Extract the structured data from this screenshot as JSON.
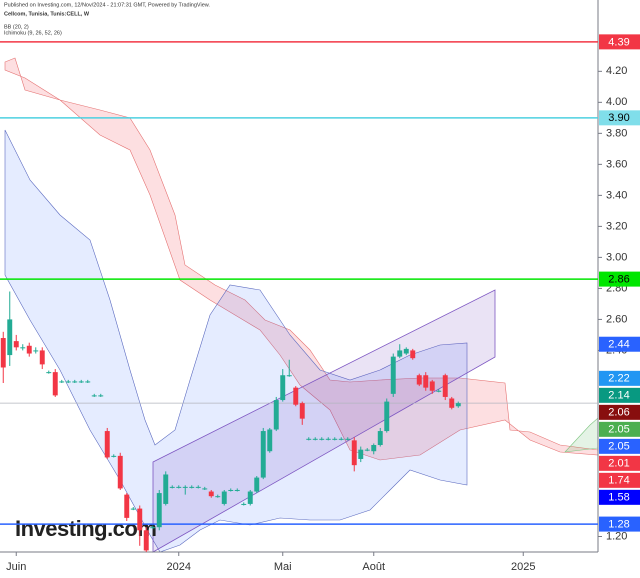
{
  "header": {
    "published": "Published on Investing.com, 12/Nov/2024 - 21:07:31 GMT, Powered by TradingView.",
    "symbol": "Cellcom, Tunisia, Tunis:CELL, W"
  },
  "chart_data": {
    "type": "candlestick",
    "indicators": [
      "BB (20, 2)",
      "Ichimoku (9, 26, 52, 26)"
    ],
    "logo": "Investing.com",
    "up_color": "#22ab94",
    "down_color": "#f23645",
    "categories": [
      null,
      null,
      "Juin",
      null,
      null,
      null,
      null,
      null,
      null,
      null,
      null,
      null,
      null,
      null,
      null,
      null,
      null,
      null,
      null,
      null,
      null,
      null,
      null,
      null,
      null,
      null,
      null,
      "2024",
      null,
      null,
      null,
      null,
      null,
      null,
      null,
      null,
      null,
      null,
      null,
      null,
      null,
      null,
      null,
      "Mai",
      null,
      null,
      null,
      null,
      null,
      null,
      null,
      null,
      null,
      null,
      null,
      null,
      null,
      "Août",
      null,
      null,
      null,
      null,
      null,
      null,
      null,
      null,
      null,
      null,
      null,
      null,
      null,
      null,
      null,
      null,
      null,
      null,
      null,
      null,
      null,
      null,
      "2025",
      null,
      null,
      null,
      null,
      null,
      null,
      null,
      null,
      null,
      null,
      null
    ],
    "open": [
      2.48,
      2.37,
      2.46,
      2.42,
      2.43,
      2.4,
      2.4,
      2.26,
      2.26,
      2.2,
      2.2,
      2.2,
      2.2,
      2.2,
      2.11,
      2.11,
      1.88,
      1.72,
      1.72,
      1.47,
      1.38,
      1.38,
      1.24,
      1.26,
      1.26,
      1.41,
      1.52,
      1.52,
      1.52,
      1.52,
      1.52,
      1.51,
      1.49,
      1.46,
      1.41,
      1.5,
      1.5,
      1.41,
      1.41,
      1.49,
      1.58,
      1.75,
      1.89,
      2.08,
      2.24,
      2.16,
      2.06,
      1.83,
      1.83,
      1.83,
      1.83,
      1.83,
      1.83,
      1.83,
      1.82,
      1.7,
      1.76,
      1.75,
      1.79,
      1.88,
      2.12,
      2.36,
      2.38,
      2.4,
      2.24,
      2.24,
      2.2,
      2.14,
      2.24,
      2.09,
      2.04,
      null,
      null,
      null,
      null,
      null,
      null,
      null,
      null,
      null,
      null,
      null,
      null,
      null,
      null,
      null,
      null,
      null,
      null,
      null,
      null,
      null
    ],
    "high": [
      2.52,
      2.78,
      2.5,
      2.44,
      2.45,
      2.42,
      2.42,
      2.27,
      2.28,
      2.21,
      2.21,
      2.21,
      2.21,
      2.21,
      2.12,
      2.12,
      1.9,
      1.73,
      1.74,
      1.48,
      1.39,
      1.4,
      1.26,
      1.27,
      1.5,
      1.62,
      1.53,
      1.53,
      1.53,
      1.53,
      1.53,
      1.52,
      1.5,
      1.47,
      1.5,
      1.51,
      1.51,
      1.42,
      1.5,
      1.59,
      1.9,
      1.9,
      2.1,
      2.28,
      2.34,
      2.17,
      2.07,
      1.84,
      1.84,
      1.84,
      1.84,
      1.84,
      1.84,
      1.84,
      1.84,
      1.78,
      1.77,
      1.8,
      1.9,
      2.09,
      2.38,
      2.44,
      2.42,
      2.41,
      2.25,
      2.26,
      2.21,
      2.15,
      2.25,
      2.1,
      2.07,
      null,
      null,
      null,
      null,
      null,
      null,
      null,
      null,
      null,
      null,
      null,
      null,
      null,
      null,
      null,
      null,
      null,
      null,
      null,
      null,
      null
    ],
    "low": [
      2.19,
      2.3,
      2.4,
      2.4,
      2.36,
      2.38,
      2.28,
      2.25,
      2.1,
      2.19,
      2.19,
      2.19,
      2.19,
      2.19,
      2.1,
      2.1,
      1.7,
      1.71,
      1.5,
      1.3,
      1.37,
      1.14,
      1.1,
      1.25,
      1.24,
      1.4,
      1.51,
      1.51,
      1.47,
      1.51,
      1.51,
      1.5,
      1.45,
      1.45,
      1.4,
      1.49,
      1.49,
      1.4,
      1.4,
      1.48,
      1.57,
      1.74,
      1.88,
      2.07,
      2.23,
      2.04,
      1.92,
      1.82,
      1.82,
      1.82,
      1.82,
      1.82,
      1.82,
      1.82,
      1.62,
      1.68,
      1.75,
      1.73,
      1.78,
      1.87,
      2.1,
      2.35,
      2.37,
      2.34,
      2.17,
      2.14,
      2.12,
      2.13,
      2.08,
      2.02,
      2.03,
      null,
      null,
      null,
      null,
      null,
      null,
      null,
      null,
      null,
      null,
      null,
      null,
      null,
      null,
      null,
      null,
      null,
      null,
      null,
      null,
      null
    ],
    "close": [
      2.29,
      2.6,
      2.42,
      2.42,
      2.38,
      2.4,
      2.31,
      2.26,
      2.11,
      2.2,
      2.2,
      2.2,
      2.2,
      2.2,
      2.11,
      2.11,
      1.71,
      1.72,
      1.51,
      1.32,
      1.38,
      1.24,
      1.11,
      1.26,
      1.48,
      1.6,
      1.52,
      1.52,
      1.52,
      1.52,
      1.52,
      1.51,
      1.46,
      1.46,
      1.49,
      1.5,
      1.5,
      1.41,
      1.49,
      1.58,
      1.88,
      1.89,
      2.08,
      2.24,
      2.24,
      2.05,
      1.96,
      1.83,
      1.83,
      1.83,
      1.83,
      1.83,
      1.83,
      1.83,
      1.66,
      1.76,
      1.76,
      1.79,
      1.88,
      2.07,
      2.36,
      2.4,
      2.41,
      2.35,
      2.18,
      2.16,
      2.14,
      2.14,
      2.1,
      2.03,
      2.06,
      null,
      null,
      null,
      null,
      null,
      null,
      null,
      null,
      null,
      null,
      null,
      null,
      null,
      null,
      null,
      null,
      null,
      null,
      null,
      null,
      null
    ],
    "ylim": [
      1.1,
      4.66
    ],
    "yticks": [
      {
        "value": 4.2,
        "label": "4.20"
      },
      {
        "value": 4.0,
        "label": "4.00"
      },
      {
        "value": 3.8,
        "label": "3.80"
      },
      {
        "value": 3.6,
        "label": "3.60"
      },
      {
        "value": 3.4,
        "label": "3.40"
      },
      {
        "value": 3.2,
        "label": "3.20"
      },
      {
        "value": 3.0,
        "label": "3.00"
      },
      {
        "value": 2.8,
        "label": "2.80"
      },
      {
        "value": 2.6,
        "label": "2.60"
      },
      {
        "value": 2.4,
        "label": "2.40"
      },
      {
        "value": 1.2,
        "label": "1.20"
      }
    ],
    "levels": [
      {
        "value": 4.39,
        "color": "#f23645"
      },
      {
        "value": 3.9,
        "color": "#4dd0e1"
      },
      {
        "value": 2.86,
        "color": "#00e600"
      },
      {
        "value": 2.06,
        "color": "#b2b5be"
      },
      {
        "value": 1.28,
        "color": "#2962ff"
      }
    ],
    "price_tags": {
      "values": [
        4.39,
        3.9,
        2.86,
        2.44,
        2.22,
        2.14,
        2.06,
        2.05,
        2.05,
        2.01,
        1.74,
        1.58,
        1.28
      ],
      "value_labels": [
        "4.39",
        "3.90",
        "2.86",
        "2.44",
        "2.22",
        "2.14",
        "2.06",
        "2.05",
        "2.05",
        "2.01",
        "1.74",
        "1.58",
        "1.28"
      ],
      "colors": [
        "#f23645",
        "#80deea",
        "#00e600",
        "#2962ff",
        "#2196f3",
        "#089981",
        "#880e0e",
        "#4caf50",
        "#2962ff",
        "#f23645",
        "#f23645",
        "#0000ff",
        "#2962ff"
      ],
      "text_colors": [
        "#ffffff",
        "#000000",
        "#000000",
        "#ffffff",
        "#ffffff",
        "#ffffff",
        "#ffffff",
        "#ffffff",
        "#ffffff",
        "#ffffff",
        "#ffffff",
        "#ffffff",
        "#ffffff"
      ]
    }
  }
}
